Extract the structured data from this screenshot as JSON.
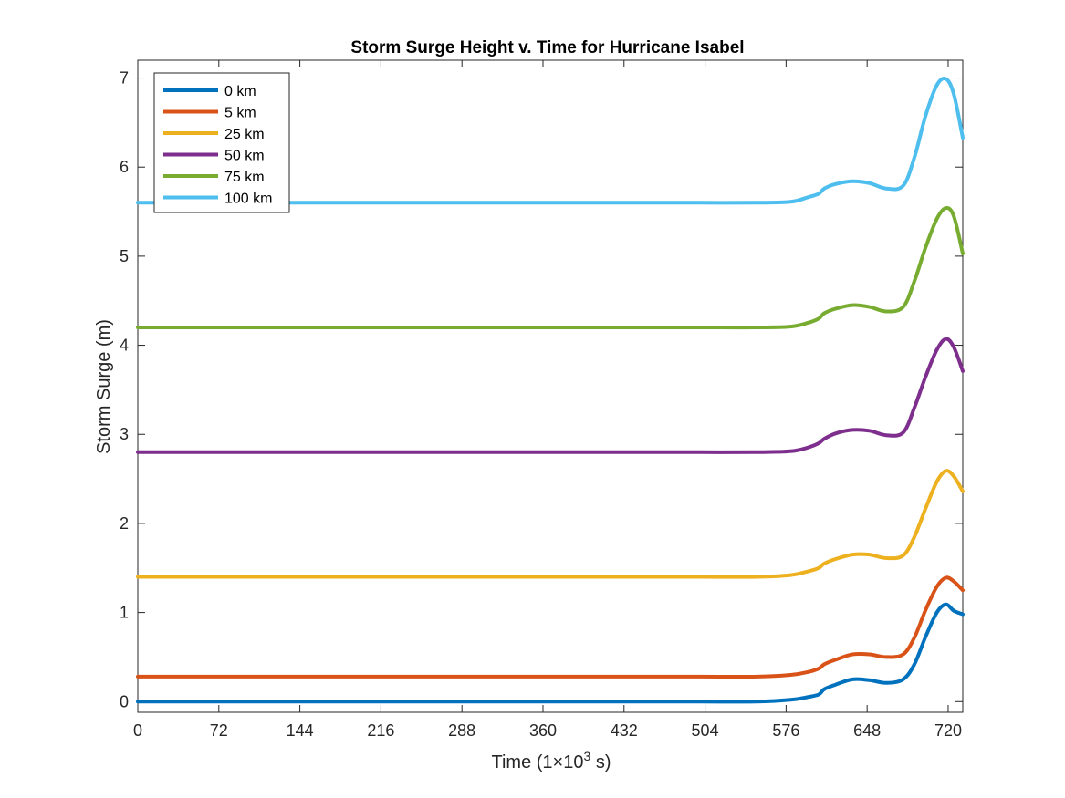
{
  "chart_data": {
    "type": "line",
    "title": "Storm Surge Height v. Time for Hurricane Isabel",
    "xlabel_prefix": "Time (1",
    "xlabel_times": "×",
    "xlabel_base": "10",
    "xlabel_exp": "3",
    "xlabel_unit": " s)",
    "ylabel": "Storm Surge (m)",
    "xlim": [
      0,
      733
    ],
    "ylim": [
      -0.12,
      7.2
    ],
    "xticks": [
      "0",
      "72",
      "144",
      "216",
      "288",
      "360",
      "432",
      "504",
      "576",
      "648",
      "720"
    ],
    "yticks": [
      "0",
      "1",
      "2",
      "3",
      "4",
      "5",
      "6",
      "7"
    ],
    "grid": false,
    "legend_position": "top-left",
    "x": [
      0,
      50,
      100,
      150,
      200,
      250,
      300,
      350,
      400,
      450,
      500,
      550,
      580,
      595,
      605,
      610,
      620,
      635,
      650,
      665,
      680,
      690,
      700,
      710,
      718,
      725,
      733
    ],
    "series": [
      {
        "name": "0 km",
        "color": "#0072BD",
        "values": [
          0,
          0,
          0,
          0,
          0,
          0,
          0,
          0,
          0,
          0,
          0,
          0,
          0.02,
          0.05,
          0.08,
          0.14,
          0.19,
          0.25,
          0.24,
          0.21,
          0.25,
          0.42,
          0.73,
          1.0,
          1.09,
          1.02,
          0.98
        ]
      },
      {
        "name": "5 km",
        "color": "#D95319",
        "values": [
          0.28,
          0.28,
          0.28,
          0.28,
          0.28,
          0.28,
          0.28,
          0.28,
          0.28,
          0.28,
          0.28,
          0.28,
          0.3,
          0.33,
          0.37,
          0.42,
          0.47,
          0.53,
          0.53,
          0.5,
          0.53,
          0.72,
          1.03,
          1.29,
          1.39,
          1.35,
          1.25
        ]
      },
      {
        "name": "25 km",
        "color": "#EDB120",
        "values": [
          1.4,
          1.4,
          1.4,
          1.4,
          1.4,
          1.4,
          1.4,
          1.4,
          1.4,
          1.4,
          1.4,
          1.4,
          1.42,
          1.46,
          1.5,
          1.55,
          1.6,
          1.65,
          1.65,
          1.61,
          1.64,
          1.85,
          2.17,
          2.47,
          2.59,
          2.53,
          2.36
        ]
      },
      {
        "name": "50 km",
        "color": "#7E2F8E",
        "values": [
          2.8,
          2.8,
          2.8,
          2.8,
          2.8,
          2.8,
          2.8,
          2.8,
          2.8,
          2.8,
          2.8,
          2.8,
          2.81,
          2.85,
          2.9,
          2.95,
          3.01,
          3.05,
          3.04,
          2.99,
          3.02,
          3.3,
          3.65,
          3.95,
          4.07,
          3.98,
          3.71
        ]
      },
      {
        "name": "75 km",
        "color": "#77AC30",
        "values": [
          4.2,
          4.2,
          4.2,
          4.2,
          4.2,
          4.2,
          4.2,
          4.2,
          4.2,
          4.2,
          4.2,
          4.2,
          4.21,
          4.25,
          4.3,
          4.36,
          4.41,
          4.45,
          4.43,
          4.38,
          4.43,
          4.72,
          5.1,
          5.42,
          5.54,
          5.45,
          5.03
        ]
      },
      {
        "name": "100 km",
        "color": "#4DBEEE",
        "values": [
          5.6,
          5.6,
          5.6,
          5.6,
          5.6,
          5.6,
          5.6,
          5.6,
          5.6,
          5.6,
          5.6,
          5.6,
          5.61,
          5.66,
          5.7,
          5.76,
          5.81,
          5.84,
          5.82,
          5.76,
          5.79,
          6.11,
          6.58,
          6.92,
          6.99,
          6.82,
          6.33
        ]
      }
    ]
  }
}
